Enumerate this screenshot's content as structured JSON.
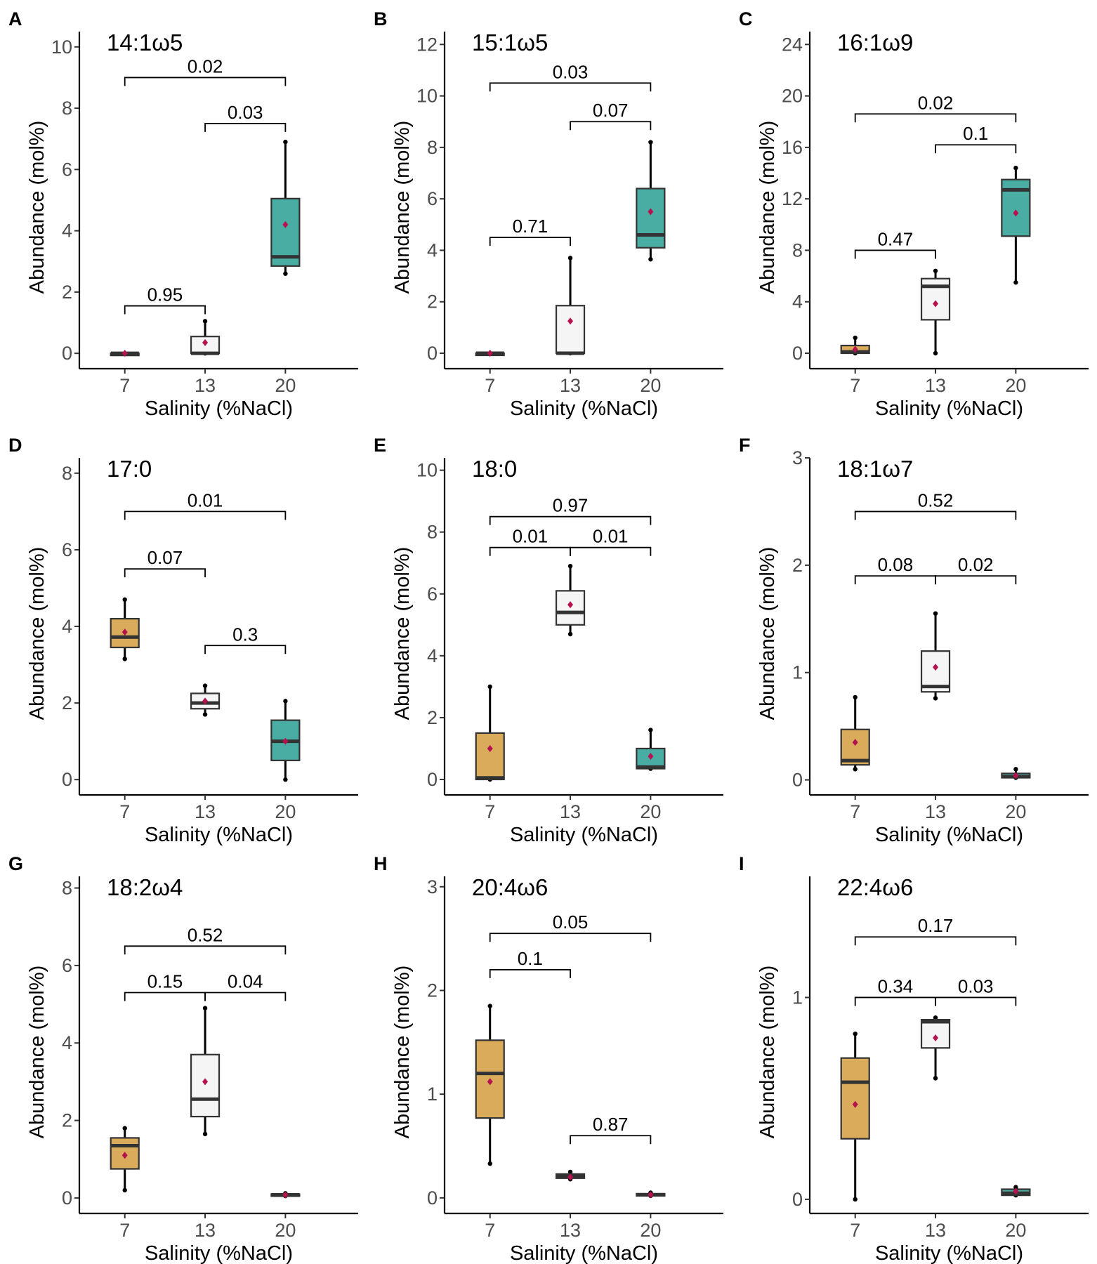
{
  "colors": {
    "c7": "#d9ab5a",
    "c13": "#f5f5f5",
    "c20": "#4aada3",
    "mean_marker": "#b5124f",
    "axis": "#000000",
    "tick_text": "#4d4d4d"
  },
  "chart_data": [
    {
      "type": "box",
      "panel": "A",
      "title": "14:1ω5",
      "xlabel": "Salinity (%NaCl)",
      "ylabel": "Abundance (mol%)",
      "ylim": [
        -0.5,
        10.5
      ],
      "yticks": [
        {
          "v": 0,
          "label": "0"
        },
        {
          "v": 2,
          "label": "2"
        },
        {
          "v": 4,
          "label": "4"
        },
        {
          "v": 6,
          "label": "6"
        },
        {
          "v": 8,
          "label": "8"
        },
        {
          "v": 10,
          "label": "10"
        }
      ],
      "categories": [
        "7",
        "13",
        "20"
      ],
      "boxes": [
        {
          "min": 0,
          "q1": 0,
          "median": 0,
          "q3": 0,
          "max": 0,
          "mean": 0
        },
        {
          "min": 0,
          "q1": 0,
          "median": 0,
          "q3": 0.55,
          "max": 1.05,
          "mean": 0.35
        },
        {
          "min": 2.6,
          "q1": 2.85,
          "median": 3.15,
          "q3": 5.05,
          "max": 6.9,
          "mean": 4.2
        }
      ],
      "comparisons": [
        {
          "from": 0,
          "to": 1,
          "y": 1.55,
          "label": "0.95"
        },
        {
          "from": 1,
          "to": 2,
          "y": 7.5,
          "label": "0.03"
        },
        {
          "from": 0,
          "to": 2,
          "y": 9.0,
          "label": "0.02"
        }
      ]
    },
    {
      "type": "box",
      "panel": "B",
      "title": "15:1ω5",
      "xlabel": "Salinity (%NaCl)",
      "ylabel": "Abundance (mol%)",
      "ylim": [
        -0.6,
        12.5
      ],
      "yticks": [
        {
          "v": 0,
          "label": "0"
        },
        {
          "v": 2,
          "label": "2"
        },
        {
          "v": 4,
          "label": "4"
        },
        {
          "v": 6,
          "label": "6"
        },
        {
          "v": 8,
          "label": "8"
        },
        {
          "v": 10,
          "label": "10"
        },
        {
          "v": 12,
          "label": "12"
        }
      ],
      "categories": [
        "7",
        "13",
        "20"
      ],
      "boxes": [
        {
          "min": 0,
          "q1": 0,
          "median": 0,
          "q3": 0,
          "max": 0,
          "mean": 0
        },
        {
          "min": 0,
          "q1": 0,
          "median": 0,
          "q3": 1.85,
          "max": 3.7,
          "mean": 1.25
        },
        {
          "min": 3.65,
          "q1": 4.1,
          "median": 4.6,
          "q3": 6.4,
          "max": 8.2,
          "mean": 5.5
        }
      ],
      "comparisons": [
        {
          "from": 0,
          "to": 1,
          "y": 4.5,
          "label": "0.71"
        },
        {
          "from": 1,
          "to": 2,
          "y": 9.0,
          "label": "0.07"
        },
        {
          "from": 0,
          "to": 2,
          "y": 10.5,
          "label": "0.03"
        }
      ]
    },
    {
      "type": "box",
      "panel": "C",
      "title": "16:1ω9",
      "xlabel": "Salinity (%NaCl)",
      "ylabel": "Abundance (mol%)",
      "ylim": [
        -1.2,
        25
      ],
      "yticks": [
        {
          "v": 0,
          "label": "0"
        },
        {
          "v": 4,
          "label": "4"
        },
        {
          "v": 8,
          "label": "8"
        },
        {
          "v": 12,
          "label": "12"
        },
        {
          "v": 16,
          "label": "16"
        },
        {
          "v": 20,
          "label": "20"
        },
        {
          "v": 24,
          "label": "24"
        }
      ],
      "categories": [
        "7",
        "13",
        "20"
      ],
      "boxes": [
        {
          "min": 0,
          "q1": 0,
          "median": 0.1,
          "q3": 0.6,
          "max": 1.2,
          "mean": 0.3
        },
        {
          "min": 0,
          "q1": 2.6,
          "median": 5.2,
          "q3": 5.8,
          "max": 6.4,
          "mean": 3.85
        },
        {
          "min": 5.5,
          "q1": 9.1,
          "median": 12.7,
          "q3": 13.5,
          "max": 14.4,
          "mean": 10.9
        }
      ],
      "comparisons": [
        {
          "from": 0,
          "to": 1,
          "y": 8.0,
          "label": "0.47"
        },
        {
          "from": 1,
          "to": 2,
          "y": 16.2,
          "label": "0.1"
        },
        {
          "from": 0,
          "to": 2,
          "y": 18.6,
          "label": "0.02"
        }
      ]
    },
    {
      "type": "box",
      "panel": "D",
      "title": "17:0",
      "xlabel": "Salinity (%NaCl)",
      "ylabel": "Abundance (mol%)",
      "ylim": [
        -0.4,
        8.4
      ],
      "yticks": [
        {
          "v": 0,
          "label": "0"
        },
        {
          "v": 2,
          "label": "2"
        },
        {
          "v": 4,
          "label": "4"
        },
        {
          "v": 6,
          "label": "6"
        },
        {
          "v": 8,
          "label": "8"
        }
      ],
      "categories": [
        "7",
        "13",
        "20"
      ],
      "boxes": [
        {
          "min": 3.15,
          "q1": 3.45,
          "median": 3.72,
          "q3": 4.2,
          "max": 4.7,
          "mean": 3.85
        },
        {
          "min": 1.7,
          "q1": 1.85,
          "median": 2.0,
          "q3": 2.25,
          "max": 2.45,
          "mean": 2.05
        },
        {
          "min": 0,
          "q1": 0.5,
          "median": 1.0,
          "q3": 1.55,
          "max": 2.05,
          "mean": 1.0
        }
      ],
      "comparisons": [
        {
          "from": 0,
          "to": 1,
          "y": 5.5,
          "label": "0.07"
        },
        {
          "from": 1,
          "to": 2,
          "y": 3.5,
          "label": "0.3"
        },
        {
          "from": 0,
          "to": 2,
          "y": 7.0,
          "label": "0.01"
        }
      ]
    },
    {
      "type": "box",
      "panel": "E",
      "title": "18:0",
      "xlabel": "Salinity (%NaCl)",
      "ylabel": "Abundance (mol%)",
      "ylim": [
        -0.5,
        10.4
      ],
      "yticks": [
        {
          "v": 0,
          "label": "0"
        },
        {
          "v": 2,
          "label": "2"
        },
        {
          "v": 4,
          "label": "4"
        },
        {
          "v": 6,
          "label": "6"
        },
        {
          "v": 8,
          "label": "8"
        },
        {
          "v": 10,
          "label": "10"
        }
      ],
      "categories": [
        "7",
        "13",
        "20"
      ],
      "boxes": [
        {
          "min": 0,
          "q1": 0,
          "median": 0.05,
          "q3": 1.5,
          "max": 3.0,
          "mean": 1.0
        },
        {
          "min": 4.7,
          "q1": 5.0,
          "median": 5.4,
          "q3": 6.1,
          "max": 6.9,
          "mean": 5.65
        },
        {
          "min": 0.35,
          "q1": 0.35,
          "median": 0.4,
          "q3": 1.0,
          "max": 1.6,
          "mean": 0.75
        }
      ],
      "comparisons": [
        {
          "from": 0,
          "to": 1,
          "y": 7.5,
          "label": "0.01"
        },
        {
          "from": 1,
          "to": 2,
          "y": 7.5,
          "label": "0.01"
        },
        {
          "from": 0,
          "to": 2,
          "y": 8.5,
          "label": "0.97"
        }
      ]
    },
    {
      "type": "box",
      "panel": "F",
      "title": "18:1ω7",
      "xlabel": "Salinity (%NaCl)",
      "ylabel": "Abundance (mol%)",
      "ylim": [
        -0.14,
        3.0
      ],
      "yticks": [
        {
          "v": 0,
          "label": "0"
        },
        {
          "v": 1,
          "label": "1"
        },
        {
          "v": 2,
          "label": "2"
        },
        {
          "v": 3,
          "label": "3"
        }
      ],
      "categories": [
        "7",
        "13",
        "20"
      ],
      "boxes": [
        {
          "min": 0.1,
          "q1": 0.14,
          "median": 0.18,
          "q3": 0.47,
          "max": 0.77,
          "mean": 0.35
        },
        {
          "min": 0.76,
          "q1": 0.82,
          "median": 0.87,
          "q3": 1.2,
          "max": 1.55,
          "mean": 1.05
        },
        {
          "min": 0.02,
          "q1": 0.02,
          "median": 0.03,
          "q3": 0.06,
          "max": 0.1,
          "mean": 0.04
        }
      ],
      "comparisons": [
        {
          "from": 0,
          "to": 1,
          "y": 1.9,
          "label": "0.08"
        },
        {
          "from": 1,
          "to": 2,
          "y": 1.9,
          "label": "0.02"
        },
        {
          "from": 0,
          "to": 2,
          "y": 2.5,
          "label": "0.52"
        }
      ]
    },
    {
      "type": "box",
      "panel": "G",
      "title": "18:2ω4",
      "xlabel": "Salinity (%NaCl)",
      "ylabel": "Abundance (mol%)",
      "ylim": [
        -0.4,
        8.3
      ],
      "yticks": [
        {
          "v": 0,
          "label": "0"
        },
        {
          "v": 2,
          "label": "2"
        },
        {
          "v": 4,
          "label": "4"
        },
        {
          "v": 6,
          "label": "6"
        },
        {
          "v": 8,
          "label": "8"
        }
      ],
      "categories": [
        "7",
        "13",
        "20"
      ],
      "boxes": [
        {
          "min": 0.2,
          "q1": 0.75,
          "median": 1.35,
          "q3": 1.55,
          "max": 1.8,
          "mean": 1.1
        },
        {
          "min": 1.65,
          "q1": 2.1,
          "median": 2.55,
          "q3": 3.7,
          "max": 4.9,
          "mean": 3.0
        },
        {
          "min": 0.05,
          "q1": 0.05,
          "median": 0.08,
          "q3": 0.1,
          "max": 0.12,
          "mean": 0.08
        }
      ],
      "comparisons": [
        {
          "from": 0,
          "to": 1,
          "y": 5.3,
          "label": "0.15"
        },
        {
          "from": 1,
          "to": 2,
          "y": 5.3,
          "label": "0.04"
        },
        {
          "from": 0,
          "to": 2,
          "y": 6.5,
          "label": "0.52"
        }
      ]
    },
    {
      "type": "box",
      "panel": "H",
      "title": "20:4ω6",
      "xlabel": "Salinity (%NaCl)",
      "ylabel": "Abundance (mol%)",
      "ylim": [
        -0.15,
        3.1
      ],
      "yticks": [
        {
          "v": 0,
          "label": "0"
        },
        {
          "v": 1,
          "label": "1"
        },
        {
          "v": 2,
          "label": "2"
        },
        {
          "v": 3,
          "label": "3"
        }
      ],
      "categories": [
        "7",
        "13",
        "20"
      ],
      "boxes": [
        {
          "min": 0.33,
          "q1": 0.77,
          "median": 1.2,
          "q3": 1.52,
          "max": 1.85,
          "mean": 1.12
        },
        {
          "min": 0.18,
          "q1": 0.19,
          "median": 0.21,
          "q3": 0.23,
          "max": 0.25,
          "mean": 0.2
        },
        {
          "min": 0.02,
          "q1": 0.02,
          "median": 0.03,
          "q3": 0.04,
          "max": 0.05,
          "mean": 0.03
        }
      ],
      "comparisons": [
        {
          "from": 0,
          "to": 1,
          "y": 2.2,
          "label": "0.1"
        },
        {
          "from": 1,
          "to": 2,
          "y": 0.6,
          "label": "0.87"
        },
        {
          "from": 0,
          "to": 2,
          "y": 2.55,
          "label": "0.05"
        }
      ]
    },
    {
      "type": "box",
      "panel": "I",
      "title": "22:4ω6",
      "xlabel": "Salinity (%NaCl)",
      "ylabel": "Abundance (mol%)",
      "ylim": [
        -0.07,
        1.6
      ],
      "yticks": [
        {
          "v": 0,
          "label": "0"
        },
        {
          "v": 1,
          "label": "1"
        }
      ],
      "categories": [
        "7",
        "13",
        "20"
      ],
      "boxes": [
        {
          "min": 0,
          "q1": 0.3,
          "median": 0.58,
          "q3": 0.7,
          "max": 0.82,
          "mean": 0.47
        },
        {
          "min": 0.6,
          "q1": 0.75,
          "median": 0.88,
          "q3": 0.89,
          "max": 0.9,
          "mean": 0.8
        },
        {
          "min": 0.02,
          "q1": 0.02,
          "median": 0.03,
          "q3": 0.05,
          "max": 0.06,
          "mean": 0.04
        }
      ],
      "comparisons": [
        {
          "from": 0,
          "to": 1,
          "y": 1.0,
          "label": "0.34"
        },
        {
          "from": 1,
          "to": 2,
          "y": 1.0,
          "label": "0.03"
        },
        {
          "from": 0,
          "to": 2,
          "y": 1.3,
          "label": "0.17"
        }
      ]
    }
  ]
}
